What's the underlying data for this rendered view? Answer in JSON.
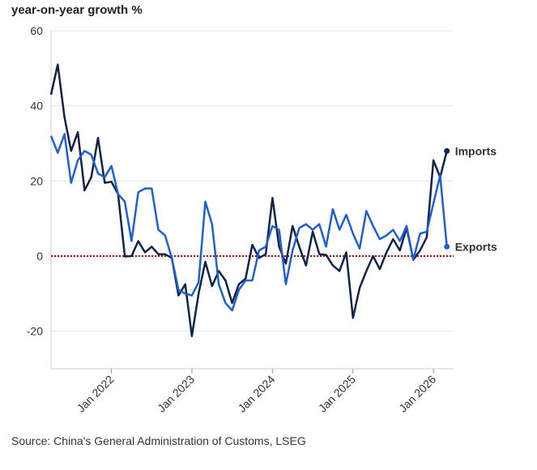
{
  "chart_data": {
    "type": "line",
    "title": "year-on-year growth %",
    "source": "Source: China's General Administration of Customs, LSEG",
    "x": [
      "2021-04",
      "2021-05",
      "2021-06",
      "2021-07",
      "2021-08",
      "2021-09",
      "2021-10",
      "2021-11",
      "2021-12",
      "2022-01",
      "2022-02",
      "2022-03",
      "2022-04",
      "2022-05",
      "2022-06",
      "2022-07",
      "2022-08",
      "2022-09",
      "2022-10",
      "2022-11",
      "2022-12",
      "2023-01",
      "2023-02",
      "2023-03",
      "2023-04",
      "2023-05",
      "2023-06",
      "2023-07",
      "2023-08",
      "2023-09",
      "2023-10",
      "2023-11",
      "2023-12",
      "2024-01",
      "2024-02",
      "2024-03",
      "2024-04",
      "2024-05",
      "2024-06",
      "2024-07",
      "2024-08",
      "2024-09",
      "2024-10",
      "2024-11",
      "2024-12",
      "2025-01",
      "2025-02",
      "2025-03",
      "2025-04",
      "2025-05",
      "2025-06",
      "2025-07",
      "2025-08",
      "2025-09",
      "2025-10",
      "2025-11",
      "2025-12",
      "2026-01",
      "2026-02",
      "2026-03"
    ],
    "series": [
      {
        "name": "Imports",
        "color": "#0f2248",
        "values": [
          43,
          51,
          37,
          28,
          33,
          17.5,
          21,
          31.5,
          19.5,
          19.8,
          16.5,
          -0.1,
          0,
          4,
          1,
          2.5,
          0.5,
          0.5,
          -0.5,
          -10.5,
          -7.5,
          -21.3,
          -10,
          -1.5,
          -8,
          -4,
          -6.5,
          -12.5,
          -7.5,
          -6,
          3,
          -0.5,
          0.5,
          15.5,
          2.5,
          -2,
          8,
          2.5,
          -2.5,
          6.5,
          0.5,
          0.3,
          -2.5,
          -4,
          1,
          -16.5,
          -8.5,
          -4,
          0,
          -3.5,
          1,
          4.5,
          1.5,
          7.5,
          -1,
          1.5,
          5,
          25.5,
          21,
          28
        ]
      },
      {
        "name": "Exports",
        "color": "#1f5fd0",
        "values": [
          32,
          27.5,
          32.5,
          19.5,
          25.5,
          28,
          27,
          22,
          21,
          24,
          16.5,
          14.5,
          4,
          17,
          18,
          18,
          7,
          5.5,
          -0.5,
          -9,
          -10,
          -10.5,
          -7,
          14.5,
          8.5,
          -7.5,
          -12.5,
          -14.5,
          -9,
          -6.5,
          -6.5,
          1.5,
          2.5,
          8,
          7,
          -7.5,
          1.5,
          7.5,
          8.5,
          7,
          8.5,
          2.5,
          12.5,
          7,
          11,
          6,
          2,
          12,
          8,
          4.5,
          5.5,
          7,
          4,
          8,
          -1,
          6,
          6.5,
          14,
          21.5,
          2.5
        ]
      }
    ],
    "xlim": [
      "2021-04",
      "2026-04"
    ],
    "xticks": [
      {
        "value": "2022-01",
        "label": "Jan 2022"
      },
      {
        "value": "2023-01",
        "label": "Jan 2023"
      },
      {
        "value": "2024-01",
        "label": "Jan 2024"
      },
      {
        "value": "2025-01",
        "label": "Jan 2025"
      },
      {
        "value": "2026-01",
        "label": "Jan 2026"
      }
    ],
    "ylim": [
      -30,
      60
    ],
    "yticks": [
      -20,
      0,
      20,
      40,
      60
    ],
    "grid": true,
    "reference_line": {
      "value": 0,
      "color": "#c00000"
    }
  }
}
